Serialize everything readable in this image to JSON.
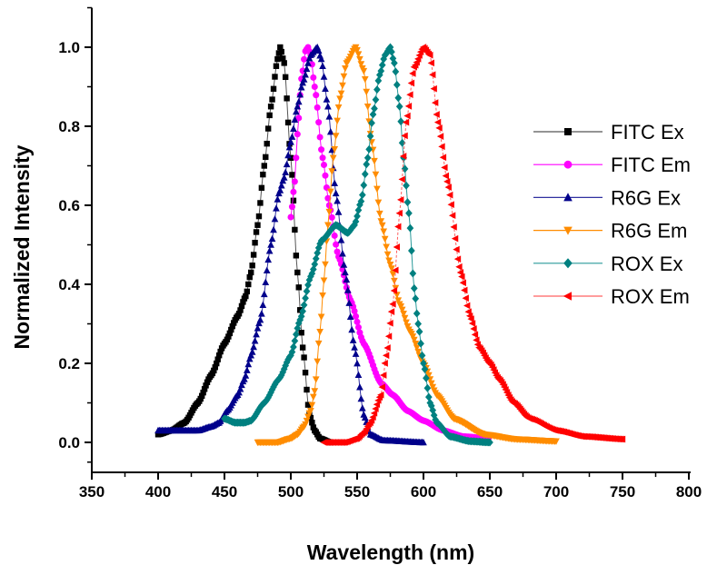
{
  "chart_data": {
    "type": "line",
    "title": "",
    "xlabel": "Wavelength (nm)",
    "ylabel": "Normalized Intensity",
    "xlim": [
      350,
      800
    ],
    "ylim": [
      -0.076,
      1.1
    ],
    "xticks": [
      350,
      400,
      450,
      500,
      550,
      600,
      650,
      700,
      750,
      800
    ],
    "xtick_labels": [
      "350",
      "400",
      "450",
      "500",
      "550",
      "600",
      "650",
      "700",
      "750",
      "800"
    ],
    "yticks": [
      0.0,
      0.2,
      0.4,
      0.6,
      0.8,
      1.0
    ],
    "ytick_labels": [
      "0.0",
      "0.2",
      "0.4",
      "0.6",
      "0.8",
      "1.0"
    ],
    "grid": false,
    "legend_position": "right",
    "series": [
      {
        "name": "FITC Ex",
        "color": "#000000",
        "line_color": "#555555",
        "marker": "square",
        "points": [
          [
            400,
            0.02
          ],
          [
            410,
            0.03
          ],
          [
            420,
            0.05
          ],
          [
            430,
            0.1
          ],
          [
            440,
            0.17
          ],
          [
            450,
            0.25
          ],
          [
            460,
            0.32
          ],
          [
            466,
            0.37
          ],
          [
            470,
            0.43
          ],
          [
            475,
            0.55
          ],
          [
            480,
            0.7
          ],
          [
            485,
            0.85
          ],
          [
            490,
            0.97
          ],
          [
            492,
            1.0
          ],
          [
            495,
            0.96
          ],
          [
            500,
            0.72
          ],
          [
            505,
            0.43
          ],
          [
            509,
            0.24
          ],
          [
            514,
            0.07
          ],
          [
            518,
            0.03
          ],
          [
            522,
            0.01
          ],
          [
            530,
            0.0
          ]
        ]
      },
      {
        "name": "FITC Em",
        "color": "#ff00ff",
        "line_color": "#ff00ff",
        "marker": "circle",
        "points": [
          [
            500,
            0.57
          ],
          [
            503,
            0.66
          ],
          [
            505,
            0.78
          ],
          [
            508,
            0.92
          ],
          [
            511,
            0.99
          ],
          [
            513,
            1.0
          ],
          [
            515,
            0.98
          ],
          [
            518,
            0.9
          ],
          [
            524,
            0.72
          ],
          [
            529,
            0.6
          ],
          [
            536,
            0.47
          ],
          [
            545,
            0.36
          ],
          [
            555,
            0.25
          ],
          [
            568,
            0.15
          ],
          [
            577,
            0.12
          ],
          [
            588,
            0.08
          ],
          [
            600,
            0.055
          ],
          [
            615,
            0.03
          ],
          [
            630,
            0.015
          ],
          [
            649,
            0.01
          ]
        ]
      },
      {
        "name": "R6G Ex",
        "color": "#00008b",
        "line_color": "#3030a0",
        "marker": "triangle-up",
        "points": [
          [
            400,
            0.03
          ],
          [
            415,
            0.03
          ],
          [
            430,
            0.03
          ],
          [
            440,
            0.04
          ],
          [
            446,
            0.05
          ],
          [
            452,
            0.08
          ],
          [
            460,
            0.12
          ],
          [
            465,
            0.16
          ],
          [
            470,
            0.22
          ],
          [
            477,
            0.31
          ],
          [
            485,
            0.5
          ],
          [
            491,
            0.63
          ],
          [
            495,
            0.67
          ],
          [
            500,
            0.76
          ],
          [
            505,
            0.85
          ],
          [
            509,
            0.91
          ],
          [
            515,
            0.98
          ],
          [
            520,
            1.0
          ],
          [
            523,
            0.97
          ],
          [
            528,
            0.85
          ],
          [
            534,
            0.63
          ],
          [
            541,
            0.43
          ],
          [
            548,
            0.24
          ],
          [
            555,
            0.07
          ],
          [
            560,
            0.02
          ],
          [
            570,
            0.005
          ],
          [
            600,
            0.0
          ]
        ]
      },
      {
        "name": "R6G Em",
        "color": "#ff8c00",
        "line_color": "#ff8c00",
        "marker": "triangle-down",
        "points": [
          [
            475,
            0.0
          ],
          [
            490,
            0.0
          ],
          [
            500,
            0.01
          ],
          [
            505,
            0.02
          ],
          [
            510,
            0.04
          ],
          [
            515,
            0.08
          ],
          [
            518,
            0.13
          ],
          [
            522,
            0.28
          ],
          [
            525,
            0.41
          ],
          [
            528,
            0.55
          ],
          [
            532,
            0.72
          ],
          [
            537,
            0.87
          ],
          [
            542,
            0.96
          ],
          [
            549,
            1.0
          ],
          [
            555,
            0.94
          ],
          [
            561,
            0.76
          ],
          [
            568,
            0.56
          ],
          [
            575,
            0.45
          ],
          [
            582,
            0.35
          ],
          [
            590,
            0.28
          ],
          [
            600,
            0.2
          ],
          [
            610,
            0.12
          ],
          [
            623,
            0.06
          ],
          [
            646,
            0.02
          ],
          [
            670,
            0.008
          ],
          [
            700,
            0.003
          ]
        ]
      },
      {
        "name": "ROX Ex",
        "color": "#008080",
        "line_color": "#2a9a9a",
        "marker": "diamond",
        "points": [
          [
            450,
            0.06
          ],
          [
            458,
            0.05
          ],
          [
            465,
            0.05
          ],
          [
            470,
            0.055
          ],
          [
            480,
            0.1
          ],
          [
            491,
            0.16
          ],
          [
            500,
            0.22
          ],
          [
            507,
            0.31
          ],
          [
            515,
            0.42
          ],
          [
            523,
            0.51
          ],
          [
            534,
            0.55
          ],
          [
            543,
            0.53
          ],
          [
            548,
            0.55
          ],
          [
            553,
            0.61
          ],
          [
            558,
            0.72
          ],
          [
            562,
            0.83
          ],
          [
            567,
            0.93
          ],
          [
            571,
            0.98
          ],
          [
            575,
            1.0
          ],
          [
            578,
            0.96
          ],
          [
            582,
            0.85
          ],
          [
            585,
            0.72
          ],
          [
            589,
            0.58
          ],
          [
            593,
            0.39
          ],
          [
            596,
            0.3
          ],
          [
            600,
            0.2
          ],
          [
            605,
            0.1
          ],
          [
            610,
            0.05
          ],
          [
            620,
            0.015
          ],
          [
            635,
            0.003
          ],
          [
            650,
            0.0
          ]
        ]
      },
      {
        "name": "ROX Em",
        "color": "#ff0000",
        "line_color": "#ff6060",
        "marker": "triangle-left",
        "points": [
          [
            525,
            0.0
          ],
          [
            540,
            0.0
          ],
          [
            550,
            0.01
          ],
          [
            555,
            0.025
          ],
          [
            560,
            0.05
          ],
          [
            568,
            0.12
          ],
          [
            572,
            0.22
          ],
          [
            577,
            0.35
          ],
          [
            582,
            0.58
          ],
          [
            587,
            0.81
          ],
          [
            593,
            0.95
          ],
          [
            600,
            1.0
          ],
          [
            605,
            0.98
          ],
          [
            611,
            0.81
          ],
          [
            618,
            0.66
          ],
          [
            628,
            0.43
          ],
          [
            635,
            0.32
          ],
          [
            642,
            0.24
          ],
          [
            650,
            0.2
          ],
          [
            657,
            0.16
          ],
          [
            668,
            0.1
          ],
          [
            680,
            0.06
          ],
          [
            700,
            0.03
          ],
          [
            720,
            0.015
          ],
          [
            750,
            0.008
          ]
        ]
      }
    ]
  }
}
